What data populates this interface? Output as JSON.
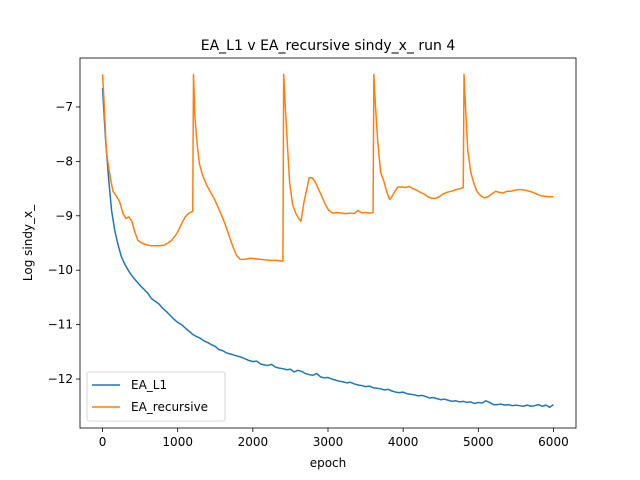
{
  "chart_data": {
    "type": "line",
    "title": "EA_L1 v EA_recursive sindy_x_ run 4",
    "xlabel": "epoch",
    "ylabel": "Log sindy_x_",
    "xlim": [
      -300,
      6300
    ],
    "ylim": [
      -12.9,
      -6.1
    ],
    "xticks": [
      0,
      1000,
      2000,
      3000,
      4000,
      5000,
      6000
    ],
    "xtick_labels": [
      "0",
      "1000",
      "2000",
      "3000",
      "4000",
      "5000",
      "6000"
    ],
    "yticks": [
      -12,
      -11,
      -10,
      -9,
      -8,
      -7
    ],
    "ytick_labels": [
      "−12",
      "−11",
      "−10",
      "−9",
      "−8",
      "−7"
    ],
    "grid": false,
    "legend_position": "lower-left",
    "series": [
      {
        "name": "EA_L1",
        "color": "#1f77b4",
        "points": [
          [
            0,
            -6.65
          ],
          [
            40,
            -7.6
          ],
          [
            80,
            -8.3
          ],
          [
            120,
            -8.9
          ],
          [
            160,
            -9.25
          ],
          [
            200,
            -9.5
          ],
          [
            250,
            -9.75
          ],
          [
            300,
            -9.9
          ],
          [
            350,
            -10.02
          ],
          [
            400,
            -10.12
          ],
          [
            450,
            -10.2
          ],
          [
            500,
            -10.28
          ],
          [
            550,
            -10.35
          ],
          [
            600,
            -10.42
          ],
          [
            650,
            -10.52
          ],
          [
            700,
            -10.57
          ],
          [
            750,
            -10.62
          ],
          [
            800,
            -10.7
          ],
          [
            850,
            -10.76
          ],
          [
            900,
            -10.83
          ],
          [
            950,
            -10.9
          ],
          [
            1000,
            -10.96
          ],
          [
            1050,
            -11.0
          ],
          [
            1100,
            -11.06
          ],
          [
            1150,
            -11.12
          ],
          [
            1200,
            -11.18
          ],
          [
            1250,
            -11.22
          ],
          [
            1300,
            -11.25
          ],
          [
            1350,
            -11.3
          ],
          [
            1400,
            -11.33
          ],
          [
            1450,
            -11.37
          ],
          [
            1500,
            -11.4
          ],
          [
            1550,
            -11.46
          ],
          [
            1600,
            -11.48
          ],
          [
            1650,
            -11.52
          ],
          [
            1700,
            -11.54
          ],
          [
            1750,
            -11.56
          ],
          [
            1800,
            -11.58
          ],
          [
            1850,
            -11.6
          ],
          [
            1900,
            -11.63
          ],
          [
            1950,
            -11.66
          ],
          [
            2000,
            -11.68
          ],
          [
            2050,
            -11.67
          ],
          [
            2100,
            -11.72
          ],
          [
            2150,
            -11.74
          ],
          [
            2200,
            -11.75
          ],
          [
            2250,
            -11.73
          ],
          [
            2300,
            -11.78
          ],
          [
            2350,
            -11.8
          ],
          [
            2400,
            -11.81
          ],
          [
            2450,
            -11.83
          ],
          [
            2500,
            -11.82
          ],
          [
            2550,
            -11.87
          ],
          [
            2600,
            -11.84
          ],
          [
            2650,
            -11.86
          ],
          [
            2700,
            -11.9
          ],
          [
            2750,
            -11.92
          ],
          [
            2800,
            -11.93
          ],
          [
            2850,
            -11.9
          ],
          [
            2900,
            -11.96
          ],
          [
            2950,
            -11.98
          ],
          [
            3000,
            -11.97
          ],
          [
            3050,
            -12.0
          ],
          [
            3100,
            -12.02
          ],
          [
            3150,
            -12.04
          ],
          [
            3200,
            -12.05
          ],
          [
            3250,
            -12.07
          ],
          [
            3300,
            -12.06
          ],
          [
            3350,
            -12.09
          ],
          [
            3400,
            -12.11
          ],
          [
            3450,
            -12.12
          ],
          [
            3500,
            -12.14
          ],
          [
            3550,
            -12.13
          ],
          [
            3600,
            -12.16
          ],
          [
            3650,
            -12.17
          ],
          [
            3700,
            -12.18
          ],
          [
            3750,
            -12.2
          ],
          [
            3800,
            -12.19
          ],
          [
            3850,
            -12.22
          ],
          [
            3900,
            -12.24
          ],
          [
            3950,
            -12.25
          ],
          [
            4000,
            -12.24
          ],
          [
            4050,
            -12.27
          ],
          [
            4100,
            -12.28
          ],
          [
            4150,
            -12.29
          ],
          [
            4200,
            -12.31
          ],
          [
            4250,
            -12.3
          ],
          [
            4300,
            -12.32
          ],
          [
            4350,
            -12.35
          ],
          [
            4400,
            -12.34
          ],
          [
            4450,
            -12.36
          ],
          [
            4500,
            -12.38
          ],
          [
            4550,
            -12.37
          ],
          [
            4600,
            -12.39
          ],
          [
            4650,
            -12.41
          ],
          [
            4700,
            -12.4
          ],
          [
            4750,
            -12.42
          ],
          [
            4800,
            -12.41
          ],
          [
            4850,
            -12.43
          ],
          [
            4900,
            -12.42
          ],
          [
            4950,
            -12.45
          ],
          [
            5000,
            -12.43
          ],
          [
            5050,
            -12.44
          ],
          [
            5100,
            -12.4
          ],
          [
            5150,
            -12.43
          ],
          [
            5200,
            -12.47
          ],
          [
            5250,
            -12.47
          ],
          [
            5300,
            -12.46
          ],
          [
            5350,
            -12.48
          ],
          [
            5400,
            -12.47
          ],
          [
            5450,
            -12.49
          ],
          [
            5500,
            -12.48
          ],
          [
            5550,
            -12.49
          ],
          [
            5600,
            -12.5
          ],
          [
            5650,
            -12.48
          ],
          [
            5700,
            -12.5
          ],
          [
            5750,
            -12.49
          ],
          [
            5800,
            -12.47
          ],
          [
            5850,
            -12.5
          ],
          [
            5900,
            -12.48
          ],
          [
            5950,
            -12.52
          ],
          [
            6000,
            -12.47
          ]
        ]
      },
      {
        "name": "EA_recursive",
        "color": "#ff7f0e",
        "points": [
          [
            0,
            -6.4
          ],
          [
            20,
            -6.9
          ],
          [
            50,
            -7.8
          ],
          [
            80,
            -8.1
          ],
          [
            110,
            -8.35
          ],
          [
            140,
            -8.55
          ],
          [
            190,
            -8.65
          ],
          [
            230,
            -8.75
          ],
          [
            270,
            -8.95
          ],
          [
            310,
            -9.05
          ],
          [
            350,
            -9.02
          ],
          [
            390,
            -9.1
          ],
          [
            430,
            -9.3
          ],
          [
            470,
            -9.45
          ],
          [
            520,
            -9.5
          ],
          [
            580,
            -9.53
          ],
          [
            640,
            -9.55
          ],
          [
            700,
            -9.55
          ],
          [
            760,
            -9.55
          ],
          [
            820,
            -9.54
          ],
          [
            870,
            -9.5
          ],
          [
            920,
            -9.45
          ],
          [
            960,
            -9.38
          ],
          [
            1000,
            -9.3
          ],
          [
            1050,
            -9.15
          ],
          [
            1100,
            -9.02
          ],
          [
            1150,
            -8.95
          ],
          [
            1200,
            -8.92
          ],
          [
            1210,
            -6.4
          ],
          [
            1230,
            -7.2
          ],
          [
            1260,
            -7.7
          ],
          [
            1290,
            -8.05
          ],
          [
            1330,
            -8.25
          ],
          [
            1380,
            -8.42
          ],
          [
            1430,
            -8.55
          ],
          [
            1480,
            -8.67
          ],
          [
            1530,
            -8.82
          ],
          [
            1580,
            -8.98
          ],
          [
            1630,
            -9.15
          ],
          [
            1680,
            -9.35
          ],
          [
            1730,
            -9.55
          ],
          [
            1780,
            -9.72
          ],
          [
            1830,
            -9.8
          ],
          [
            1900,
            -9.8
          ],
          [
            1960,
            -9.78
          ],
          [
            2030,
            -9.79
          ],
          [
            2100,
            -9.8
          ],
          [
            2170,
            -9.81
          ],
          [
            2240,
            -9.82
          ],
          [
            2310,
            -9.82
          ],
          [
            2380,
            -9.83
          ],
          [
            2400,
            -9.83
          ],
          [
            2410,
            -6.4
          ],
          [
            2430,
            -6.95
          ],
          [
            2460,
            -7.7
          ],
          [
            2490,
            -8.4
          ],
          [
            2530,
            -8.8
          ],
          [
            2570,
            -8.95
          ],
          [
            2610,
            -9.05
          ],
          [
            2640,
            -9.1
          ],
          [
            2680,
            -8.75
          ],
          [
            2720,
            -8.5
          ],
          [
            2750,
            -8.3
          ],
          [
            2790,
            -8.3
          ],
          [
            2830,
            -8.38
          ],
          [
            2870,
            -8.5
          ],
          [
            2910,
            -8.62
          ],
          [
            2960,
            -8.78
          ],
          [
            3010,
            -8.9
          ],
          [
            3060,
            -8.95
          ],
          [
            3120,
            -8.94
          ],
          [
            3180,
            -8.95
          ],
          [
            3240,
            -8.96
          ],
          [
            3300,
            -8.95
          ],
          [
            3350,
            -8.96
          ],
          [
            3400,
            -8.9
          ],
          [
            3450,
            -8.95
          ],
          [
            3500,
            -8.94
          ],
          [
            3560,
            -8.95
          ],
          [
            3600,
            -8.94
          ],
          [
            3610,
            -6.4
          ],
          [
            3630,
            -6.95
          ],
          [
            3660,
            -7.6
          ],
          [
            3700,
            -8.2
          ],
          [
            3740,
            -8.35
          ],
          [
            3780,
            -8.55
          ],
          [
            3820,
            -8.7
          ],
          [
            3850,
            -8.65
          ],
          [
            3890,
            -8.55
          ],
          [
            3930,
            -8.47
          ],
          [
            3980,
            -8.47
          ],
          [
            4030,
            -8.48
          ],
          [
            4080,
            -8.46
          ],
          [
            4130,
            -8.5
          ],
          [
            4180,
            -8.53
          ],
          [
            4230,
            -8.57
          ],
          [
            4280,
            -8.6
          ],
          [
            4330,
            -8.65
          ],
          [
            4380,
            -8.68
          ],
          [
            4430,
            -8.68
          ],
          [
            4480,
            -8.65
          ],
          [
            4530,
            -8.6
          ],
          [
            4580,
            -8.57
          ],
          [
            4640,
            -8.55
          ],
          [
            4700,
            -8.52
          ],
          [
            4760,
            -8.5
          ],
          [
            4800,
            -8.48
          ],
          [
            4810,
            -6.4
          ],
          [
            4830,
            -7.0
          ],
          [
            4860,
            -7.8
          ],
          [
            4900,
            -8.2
          ],
          [
            4940,
            -8.4
          ],
          [
            4980,
            -8.55
          ],
          [
            5030,
            -8.63
          ],
          [
            5080,
            -8.67
          ],
          [
            5130,
            -8.65
          ],
          [
            5180,
            -8.6
          ],
          [
            5230,
            -8.55
          ],
          [
            5280,
            -8.57
          ],
          [
            5330,
            -8.58
          ],
          [
            5380,
            -8.55
          ],
          [
            5430,
            -8.55
          ],
          [
            5480,
            -8.53
          ],
          [
            5530,
            -8.52
          ],
          [
            5580,
            -8.52
          ],
          [
            5630,
            -8.53
          ],
          [
            5680,
            -8.55
          ],
          [
            5730,
            -8.57
          ],
          [
            5780,
            -8.6
          ],
          [
            5830,
            -8.63
          ],
          [
            5880,
            -8.64
          ],
          [
            5930,
            -8.65
          ],
          [
            6000,
            -8.65
          ]
        ]
      }
    ]
  }
}
